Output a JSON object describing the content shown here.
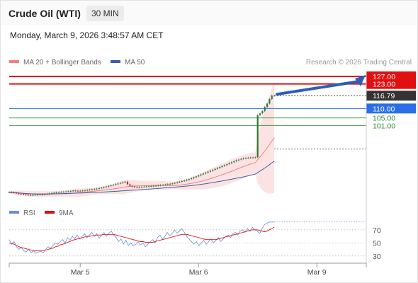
{
  "header": {
    "instrument": "Crude Oil (WTI)",
    "timeframe": "30 MIN",
    "timestamp": "Monday, March 9, 2026 3:48:57 AM CET"
  },
  "colors": {
    "resistance": "#e01010",
    "pivot": "#2a6fe8",
    "support": "#2e8b2e",
    "ma20": "#f08080",
    "ma50": "#3a5fa8",
    "rsi": "#6a8fd8",
    "rsi_ma": "#e01010",
    "candle_up": "#2e7d32",
    "candle_down": "#c62828"
  },
  "chart_data": {
    "type": "line",
    "title": "Crude Oil (WTI)",
    "legend": [
      {
        "name": "MA 20 + Bollinger Bands",
        "color": "#f08080"
      },
      {
        "name": "MA 50",
        "color": "#3a5fa8"
      }
    ],
    "copyright": "Research © 2026 Trading Central",
    "x_ticks": [
      "Mar 5",
      "Mar 6",
      "Mar 9"
    ],
    "x_tick_index": [
      30,
      80,
      130
    ],
    "ylim": [
      58,
      129
    ],
    "price_closes": [
      65.6,
      65.5,
      65.3,
      65.0,
      64.8,
      64.6,
      64.5,
      64.3,
      64.2,
      64.1,
      64.2,
      64.3,
      64.4,
      64.5,
      64.4,
      64.6,
      64.8,
      65.0,
      65.2,
      65.4,
      65.5,
      65.6,
      65.8,
      65.9,
      66.0,
      66.1,
      66.3,
      66.5,
      66.4,
      66.3,
      66.4,
      66.5,
      66.6,
      66.8,
      67.0,
      67.1,
      67.3,
      67.5,
      67.8,
      68.0,
      68.3,
      68.6,
      69.0,
      69.3,
      69.6,
      69.9,
      70.2,
      70.5,
      70.9,
      71.2,
      69.8,
      69.0,
      68.6,
      68.4,
      68.2,
      68.3,
      68.5,
      68.6,
      68.7,
      68.8,
      68.9,
      69.0,
      69.1,
      69.2,
      69.4,
      69.5,
      69.7,
      69.9,
      70.1,
      70.3,
      70.6,
      70.9,
      71.2,
      71.5,
      71.8,
      72.2,
      72.6,
      73.0,
      73.5,
      74.0,
      74.5,
      75.0,
      75.5,
      76.0,
      76.5,
      77.0,
      77.5,
      78.0,
      78.5,
      79.0,
      79.5,
      80.0,
      80.5,
      81.0,
      81.5,
      82.0,
      82.5,
      82.9,
      83.3,
      83.6,
      83.8,
      83.9,
      84.0,
      84.0,
      84.1,
      106.5,
      107.4,
      108.6,
      110.8,
      112.6,
      115.0,
      116.8,
      116.8
    ],
    "ma20_band": {
      "start_index": 0,
      "upper_end": 104.0,
      "lower_end": 69.0
    },
    "levels": [
      {
        "label": "127.00",
        "value": 127.0,
        "kind": "resistance"
      },
      {
        "label": "123.00",
        "value": 123.0,
        "kind": "resistance"
      },
      {
        "label": "116.79",
        "value": 116.79,
        "kind": "last"
      },
      {
        "label": "110.00",
        "value": 110.0,
        "kind": "pivot"
      },
      {
        "label": "105.00",
        "value": 105.0,
        "kind": "support"
      },
      {
        "label": "101.00",
        "value": 101.0,
        "kind": "support"
      }
    ],
    "forecast": {
      "from": 116.8,
      "to": 127.0
    },
    "rsi": {
      "legend": [
        {
          "name": "RSI",
          "color": "#6a8fd8"
        },
        {
          "name": "9MA",
          "color": "#e01010"
        }
      ],
      "ticks": [
        "70",
        "50",
        "30"
      ],
      "tick_values": [
        70,
        50,
        30
      ],
      "ylim": [
        20,
        85
      ],
      "values": [
        55,
        48,
        52,
        44,
        40,
        43,
        38,
        36,
        40,
        35,
        38,
        34,
        36,
        37,
        35,
        40,
        44,
        42,
        46,
        50,
        48,
        52,
        55,
        50,
        58,
        54,
        60,
        57,
        62,
        56,
        60,
        64,
        58,
        62,
        66,
        60,
        64,
        57,
        62,
        66,
        60,
        65,
        68,
        62,
        58,
        52,
        56,
        48,
        54,
        46,
        50,
        45,
        48,
        52,
        47,
        50,
        44,
        48,
        52,
        55,
        50,
        58,
        62,
        56,
        60,
        66,
        61,
        64,
        70,
        65,
        68,
        72,
        66,
        60,
        56,
        52,
        48,
        52,
        46,
        50,
        54,
        48,
        52,
        56,
        50,
        54,
        58,
        52,
        56,
        60,
        62,
        58,
        64,
        66,
        62,
        68,
        70,
        66,
        72,
        68,
        74,
        70,
        68,
        64,
        72,
        78,
        80,
        82,
        82,
        82
      ],
      "ma": [
        50,
        49,
        48,
        46,
        44,
        43,
        42,
        41,
        40,
        39,
        38,
        38,
        38,
        38,
        38,
        39,
        40,
        41,
        42,
        44,
        45,
        47,
        48,
        49,
        51,
        52,
        54,
        55,
        56,
        57,
        58,
        59,
        60,
        60,
        61,
        61,
        62,
        62,
        62,
        63,
        63,
        63,
        63,
        63,
        62,
        61,
        60,
        59,
        58,
        57,
        56,
        55,
        54,
        53,
        52,
        52,
        51,
        51,
        51,
        51,
        52,
        53,
        54,
        55,
        56,
        57,
        58,
        59,
        60,
        61,
        62,
        63,
        63,
        63,
        62,
        61,
        60,
        59,
        58,
        57,
        56,
        55,
        55,
        55,
        55,
        55,
        56,
        57,
        58,
        59,
        60,
        61,
        62,
        63,
        64,
        65,
        66,
        67,
        68,
        69,
        70,
        70,
        70,
        69,
        68,
        67,
        68,
        70,
        72,
        74
      ]
    }
  }
}
